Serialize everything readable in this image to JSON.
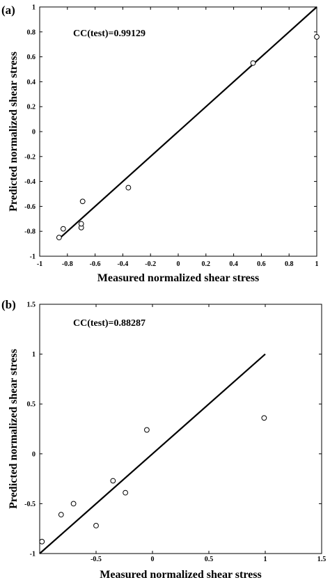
{
  "chart_data": [
    {
      "type": "scatter",
      "panel_label": "(a)",
      "annotation": "CC(test)=0.99129",
      "xlabel": "Measured normalized shear stress",
      "ylabel": "Predicted normalized shear stress",
      "xlim": [
        -1,
        1
      ],
      "ylim": [
        -1,
        1
      ],
      "x_ticks": [
        -1,
        -0.8,
        -0.6,
        -0.4,
        -0.2,
        0,
        0.2,
        0.4,
        0.6,
        0.8,
        1
      ],
      "x_tick_labels": [
        "-1",
        "-0.8",
        "-0.6",
        "-0.4",
        "-0.2",
        "0",
        "0.2",
        "0.4",
        "0.6",
        "0.8",
        "1"
      ],
      "y_ticks": [
        -1,
        -0.8,
        -0.6,
        -0.4,
        -0.2,
        0,
        0.2,
        0.4,
        0.6,
        0.8,
        1
      ],
      "y_tick_labels": [
        "-1",
        "-0.8",
        "-0.6",
        "-0.4",
        "-0.2",
        "0",
        "0.2",
        "0.4",
        "0.6",
        "0.8",
        "1"
      ],
      "grid": false,
      "points": [
        {
          "x": -0.86,
          "y": -0.85
        },
        {
          "x": -0.83,
          "y": -0.78
        },
        {
          "x": -0.7,
          "y": -0.77
        },
        {
          "x": -0.7,
          "y": -0.74
        },
        {
          "x": -0.69,
          "y": -0.56
        },
        {
          "x": -0.36,
          "y": -0.45
        },
        {
          "x": 0.54,
          "y": 0.55
        },
        {
          "x": 1.0,
          "y": 0.76
        }
      ],
      "fit_line": {
        "x": [
          -0.86,
          1.0
        ],
        "y": [
          -0.86,
          1.0
        ]
      }
    },
    {
      "type": "scatter",
      "panel_label": "(b)",
      "annotation": "CC(test)=0.88287",
      "xlabel": "Measured normalized shear stress",
      "ylabel": "Predicted normalized shear stress",
      "xlim": [
        -1,
        1.5
      ],
      "ylim": [
        -1,
        1.5
      ],
      "x_ticks": [
        -0.5,
        0,
        0.5,
        1,
        1.5
      ],
      "x_tick_labels": [
        "-0.5",
        "0",
        "0.5",
        "1",
        "1.5"
      ],
      "y_ticks": [
        -1,
        -0.5,
        0,
        0.5,
        1,
        1.5
      ],
      "y_tick_labels": [
        "-1",
        "-0.5",
        "0",
        "0.5",
        "1",
        "1.5"
      ],
      "grid": false,
      "points": [
        {
          "x": -0.98,
          "y": -0.88
        },
        {
          "x": -0.81,
          "y": -0.61
        },
        {
          "x": -0.7,
          "y": -0.5
        },
        {
          "x": -0.5,
          "y": -0.72
        },
        {
          "x": -0.35,
          "y": -0.27
        },
        {
          "x": -0.24,
          "y": -0.39
        },
        {
          "x": -0.05,
          "y": 0.24
        },
        {
          "x": 0.99,
          "y": 0.36
        }
      ],
      "fit_line": {
        "x": [
          -1.0,
          1.0
        ],
        "y": [
          -1.0,
          1.0
        ]
      }
    }
  ]
}
